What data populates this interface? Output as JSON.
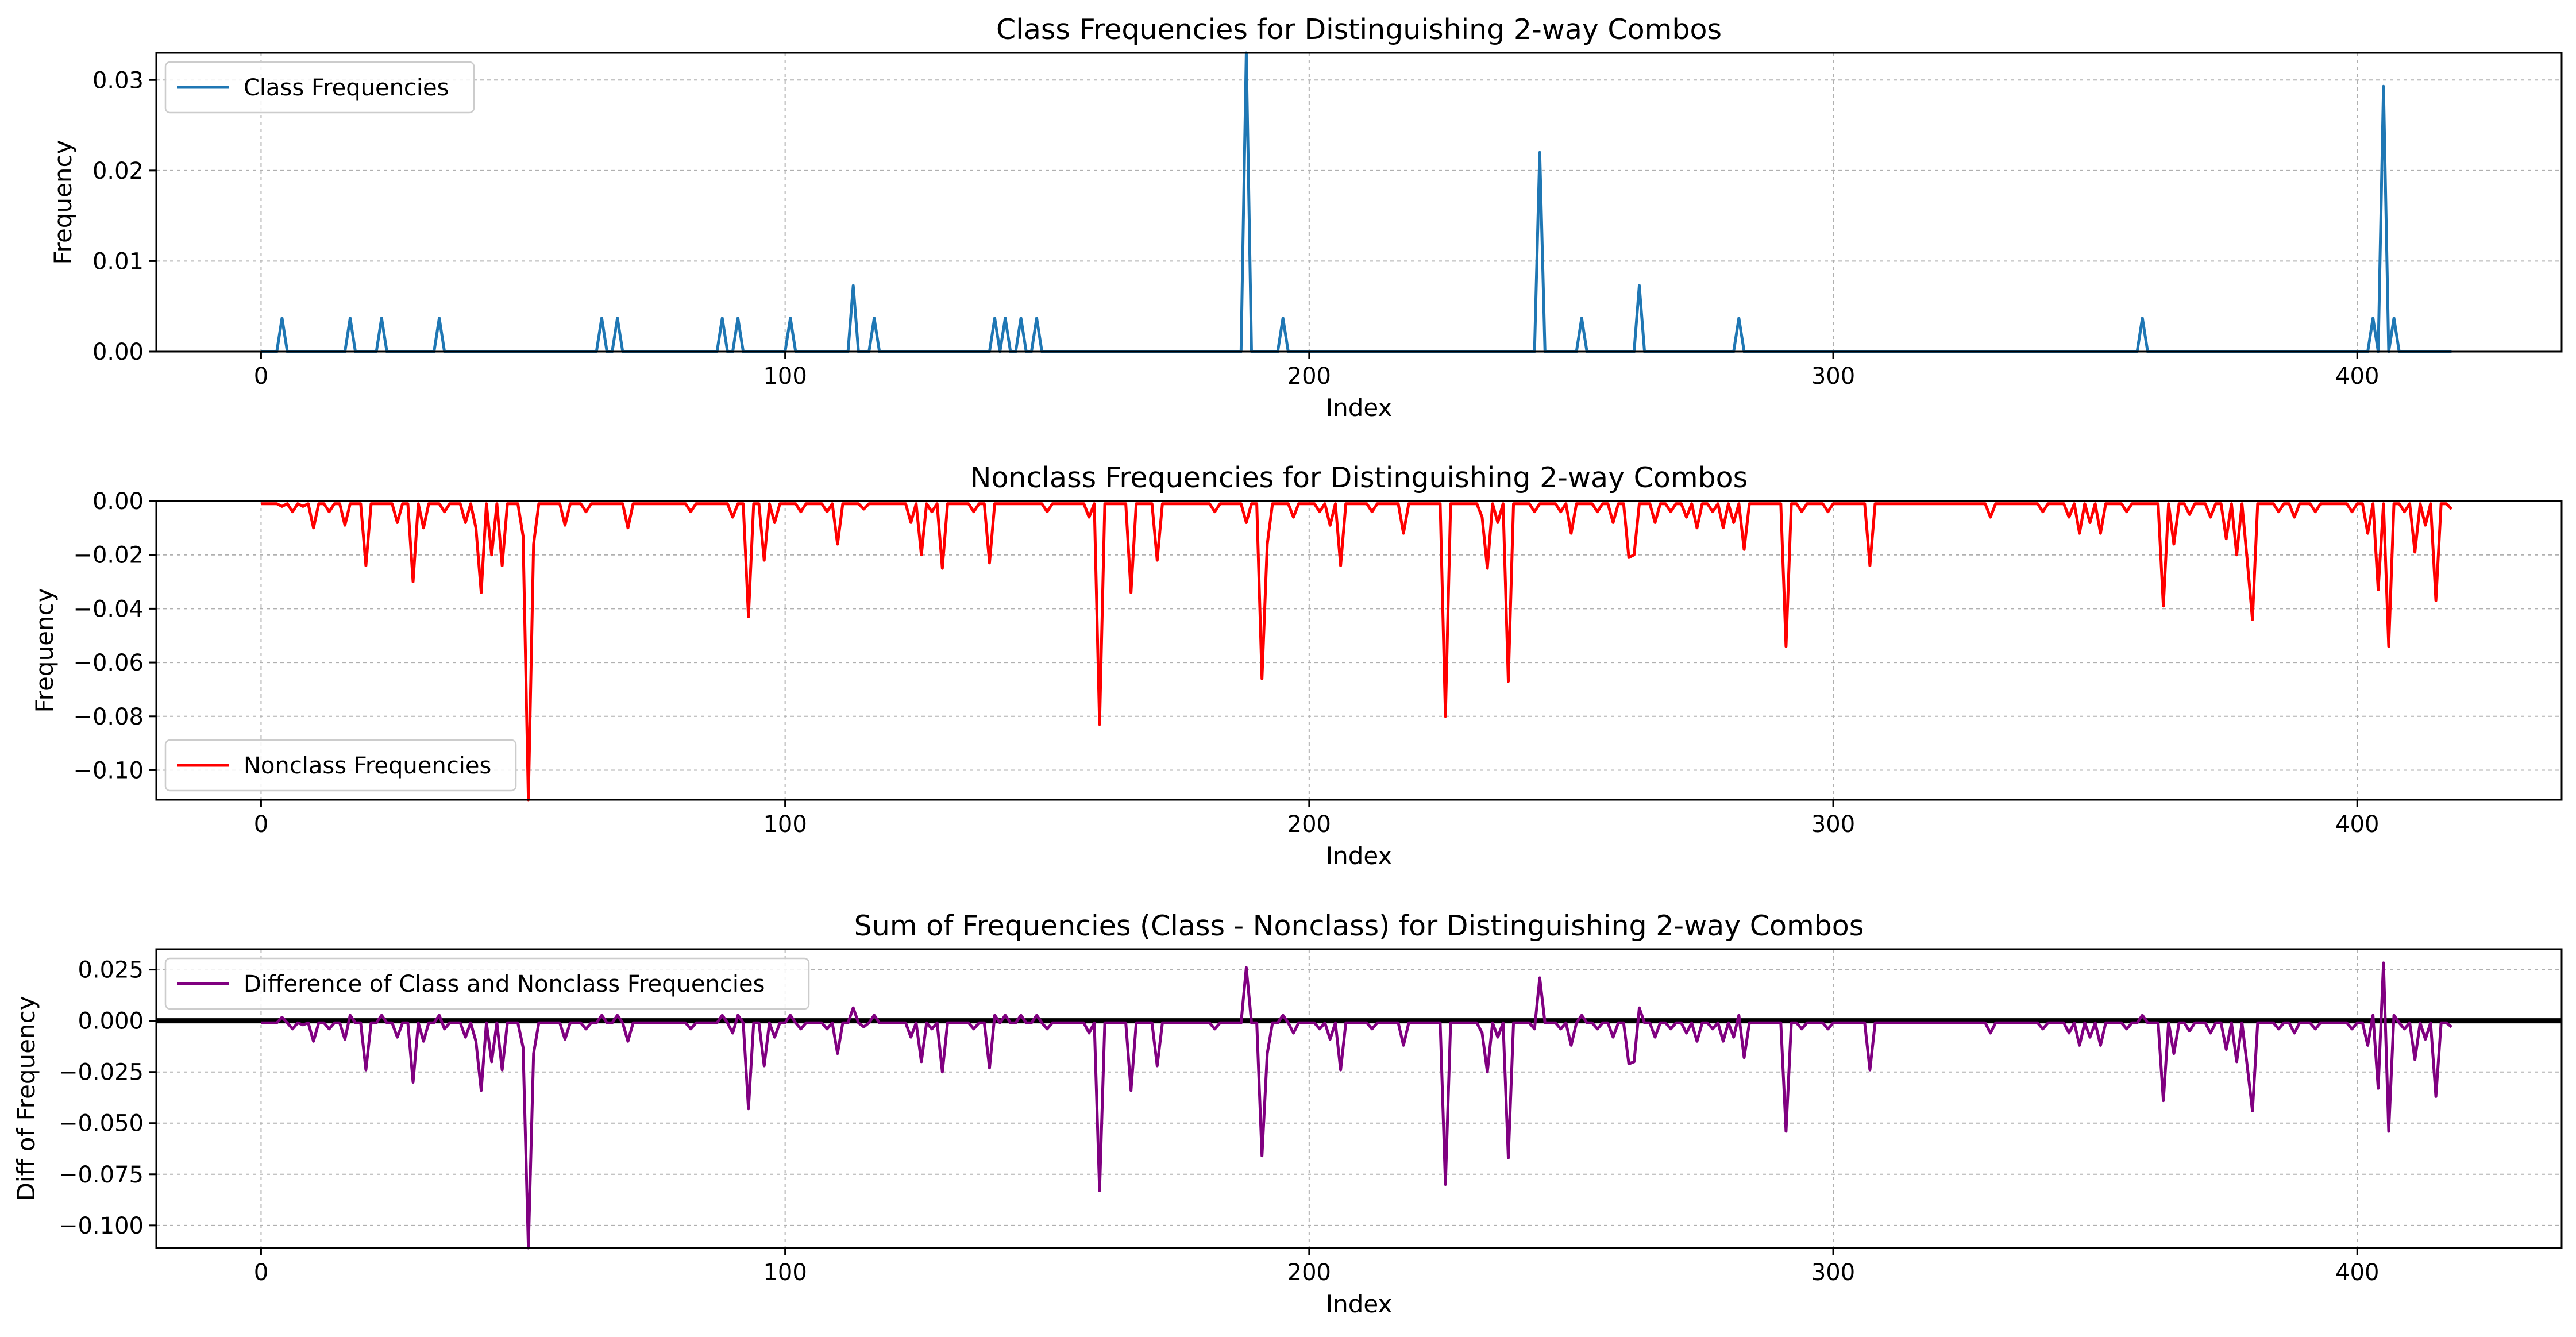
{
  "colors": {
    "class": "#1f77b4",
    "nonclass": "#ff0000",
    "diff": "#800080",
    "zero_line": "#000000",
    "grid": "#b0b0b0"
  },
  "chart_data": [
    {
      "type": "line",
      "title": "Class Frequencies for Distinguishing 2-way Combos",
      "xlabel": "Index",
      "ylabel": "Frequency",
      "xlim": [
        -20,
        439
      ],
      "ylim": [
        0,
        0.033
      ],
      "xticks": [
        0,
        100,
        200,
        300,
        400
      ],
      "yticks": [
        0,
        0.01,
        0.02,
        0.03
      ],
      "ytick_labels": [
        "0.00",
        "0.01",
        "0.02",
        "0.03"
      ],
      "grid": true,
      "legend_position": "upper left",
      "series": [
        {
          "name": "Class Frequencies",
          "n_points": 419,
          "baseline": 0,
          "spikes": [
            [
              4,
              0.0037
            ],
            [
              17,
              0.0037
            ],
            [
              23,
              0.0037
            ],
            [
              34,
              0.0037
            ],
            [
              65,
              0.0037
            ],
            [
              68,
              0.0037
            ],
            [
              88,
              0.0037
            ],
            [
              91,
              0.0037
            ],
            [
              101,
              0.0037
            ],
            [
              113,
              0.0073
            ],
            [
              117,
              0.0037
            ],
            [
              140,
              0.0037
            ],
            [
              142,
              0.0037
            ],
            [
              145,
              0.0037
            ],
            [
              148,
              0.0037
            ],
            [
              188,
              0.034
            ],
            [
              195,
              0.0037
            ],
            [
              244,
              0.022
            ],
            [
              252,
              0.0037
            ],
            [
              263,
              0.0073
            ],
            [
              282,
              0.0037
            ],
            [
              359,
              0.0037
            ],
            [
              403,
              0.0037
            ],
            [
              405,
              0.0293
            ],
            [
              407,
              0.0037
            ]
          ]
        }
      ]
    },
    {
      "type": "line",
      "title": "Nonclass Frequencies for Distinguishing 2-way Combos",
      "xlabel": "Index",
      "ylabel": "Frequency",
      "xlim": [
        -20,
        439
      ],
      "ylim": [
        -0.111,
        0
      ],
      "xticks": [
        0,
        100,
        200,
        300,
        400
      ],
      "yticks": [
        -0.1,
        -0.08,
        -0.06,
        -0.04,
        -0.02,
        0
      ],
      "ytick_labels": [
        "−0.10",
        "−0.08",
        "−0.06",
        "−0.04",
        "−0.02",
        "0.00"
      ],
      "grid": true,
      "legend_position": "lower left",
      "series": [
        {
          "name": "Nonclass Frequencies",
          "n_points": 419,
          "baseline": -0.001,
          "spikes": [
            [
              4,
              -0.002
            ],
            [
              6,
              -0.004
            ],
            [
              8,
              -0.002
            ],
            [
              10,
              -0.01
            ],
            [
              13,
              -0.004
            ],
            [
              16,
              -0.009
            ],
            [
              20,
              -0.024
            ],
            [
              26,
              -0.008
            ],
            [
              29,
              -0.03
            ],
            [
              31,
              -0.01
            ],
            [
              35,
              -0.004
            ],
            [
              39,
              -0.008
            ],
            [
              41,
              -0.01
            ],
            [
              42,
              -0.034
            ],
            [
              44,
              -0.02
            ],
            [
              46,
              -0.024
            ],
            [
              50,
              -0.013
            ],
            [
              51,
              -0.111
            ],
            [
              52,
              -0.016
            ],
            [
              58,
              -0.009
            ],
            [
              62,
              -0.004
            ],
            [
              70,
              -0.01
            ],
            [
              82,
              -0.004
            ],
            [
              90,
              -0.006
            ],
            [
              93,
              -0.043
            ],
            [
              96,
              -0.022
            ],
            [
              98,
              -0.008
            ],
            [
              103,
              -0.004
            ],
            [
              108,
              -0.004
            ],
            [
              110,
              -0.016
            ],
            [
              115,
              -0.003
            ],
            [
              124,
              -0.008
            ],
            [
              126,
              -0.02
            ],
            [
              128,
              -0.004
            ],
            [
              130,
              -0.025
            ],
            [
              136,
              -0.004
            ],
            [
              139,
              -0.023
            ],
            [
              150,
              -0.004
            ],
            [
              158,
              -0.006
            ],
            [
              160,
              -0.083
            ],
            [
              166,
              -0.034
            ],
            [
              171,
              -0.022
            ],
            [
              182,
              -0.004
            ],
            [
              188,
              -0.008
            ],
            [
              191,
              -0.066
            ],
            [
              192,
              -0.016
            ],
            [
              197,
              -0.006
            ],
            [
              202,
              -0.004
            ],
            [
              204,
              -0.009
            ],
            [
              206,
              -0.024
            ],
            [
              212,
              -0.004
            ],
            [
              218,
              -0.012
            ],
            [
              226,
              -0.08
            ],
            [
              233,
              -0.006
            ],
            [
              234,
              -0.025
            ],
            [
              236,
              -0.008
            ],
            [
              238,
              -0.067
            ],
            [
              243,
              -0.004
            ],
            [
              248,
              -0.004
            ],
            [
              250,
              -0.012
            ],
            [
              255,
              -0.004
            ],
            [
              258,
              -0.008
            ],
            [
              261,
              -0.021
            ],
            [
              262,
              -0.02
            ],
            [
              266,
              -0.008
            ],
            [
              269,
              -0.004
            ],
            [
              272,
              -0.006
            ],
            [
              274,
              -0.01
            ],
            [
              277,
              -0.004
            ],
            [
              279,
              -0.01
            ],
            [
              281,
              -0.008
            ],
            [
              283,
              -0.018
            ],
            [
              291,
              -0.054
            ],
            [
              294,
              -0.004
            ],
            [
              299,
              -0.004
            ],
            [
              307,
              -0.024
            ],
            [
              330,
              -0.006
            ],
            [
              340,
              -0.004
            ],
            [
              345,
              -0.006
            ],
            [
              347,
              -0.012
            ],
            [
              349,
              -0.008
            ],
            [
              351,
              -0.012
            ],
            [
              356,
              -0.004
            ],
            [
              363,
              -0.039
            ],
            [
              365,
              -0.016
            ],
            [
              368,
              -0.005
            ],
            [
              372,
              -0.006
            ],
            [
              375,
              -0.014
            ],
            [
              377,
              -0.02
            ],
            [
              379,
              -0.022
            ],
            [
              380,
              -0.044
            ],
            [
              385,
              -0.004
            ],
            [
              388,
              -0.006
            ],
            [
              392,
              -0.004
            ],
            [
              399,
              -0.004
            ],
            [
              402,
              -0.012
            ],
            [
              404,
              -0.033
            ],
            [
              406,
              -0.054
            ],
            [
              409,
              -0.004
            ],
            [
              411,
              -0.019
            ],
            [
              413,
              -0.009
            ],
            [
              415,
              -0.037
            ],
            [
              418,
              -0.003
            ]
          ]
        }
      ]
    },
    {
      "type": "line",
      "title": "Sum of Frequencies (Class - Nonclass) for Distinguishing 2-way Combos",
      "xlabel": "Index",
      "ylabel": "Diff of Frequency",
      "xlim": [
        -20,
        439
      ],
      "ylim": [
        -0.111,
        0.035
      ],
      "xticks": [
        0,
        100,
        200,
        300,
        400
      ],
      "yticks": [
        -0.1,
        -0.075,
        -0.05,
        -0.025,
        0,
        0.025
      ],
      "ytick_labels": [
        "−0.100",
        "−0.075",
        "−0.050",
        "−0.025",
        "0.000",
        "0.025"
      ],
      "grid": true,
      "legend_position": "upper left",
      "horizontal_line_at": 0,
      "series": [
        {
          "name": "Difference of Class and Nonclass Frequencies",
          "derived_from": "class minus nonclass magnitude"
        }
      ]
    }
  ]
}
